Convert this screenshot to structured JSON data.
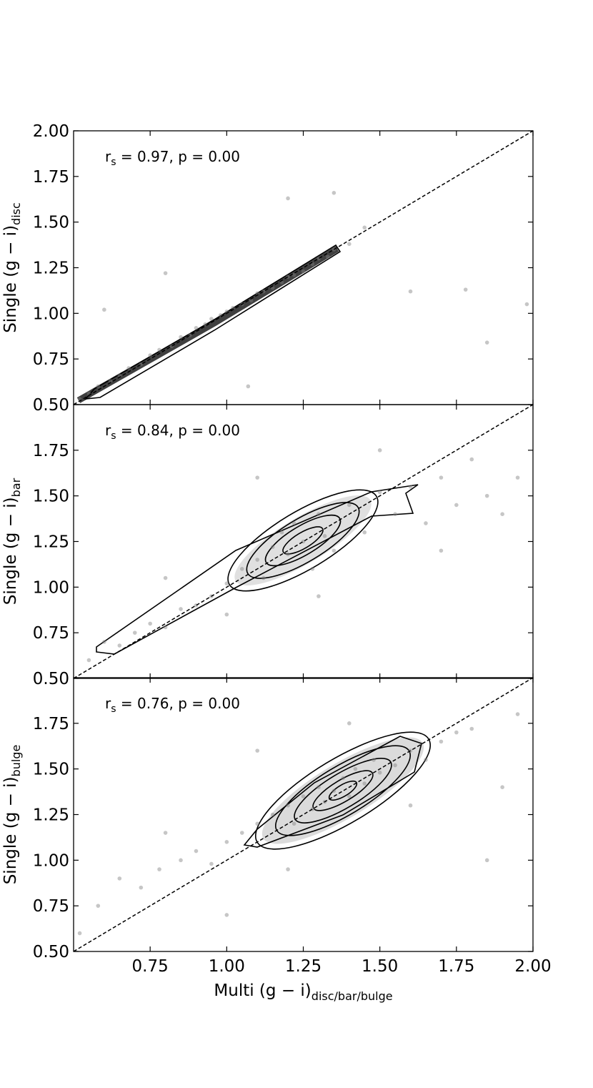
{
  "chart_data": [
    {
      "type": "scatter",
      "color": "#808080",
      "marker_alpha": 0.45,
      "diagonal": true,
      "ylabel": "Single (g − i)",
      "ylabel_sub": "disc",
      "annotation_prefix": "r",
      "annotation_sub": "s",
      "annotation": " = 0.97, p = 0.00",
      "xlim": [
        0.5,
        2.0
      ],
      "ylim": [
        0.5,
        2.0
      ],
      "xticks": [
        0.75,
        1,
        1.25,
        1.5,
        1.75,
        2
      ],
      "yticks": [
        {
          "value": 0.5,
          "label": "0.50"
        },
        {
          "value": 0.75,
          "label": "0.75"
        },
        {
          "value": 1,
          "label": "1.00"
        },
        {
          "value": 1.25,
          "label": "1.25"
        },
        {
          "value": 1.5,
          "label": "1.50"
        },
        {
          "value": 1.75,
          "label": "1.75"
        },
        {
          "value": 2,
          "label": "2.00"
        }
      ],
      "x": [
        0.52,
        0.55,
        0.58,
        0.62,
        0.65,
        0.68,
        0.72,
        0.75,
        0.78,
        0.82,
        0.85,
        0.88,
        0.9,
        0.93,
        0.95,
        0.98,
        1.0,
        1.02,
        1.05,
        1.08,
        1.1,
        1.12,
        1.15,
        1.18,
        1.2,
        1.22,
        1.25,
        1.28,
        1.3,
        1.33,
        1.35,
        1.4,
        1.45,
        1.6,
        1.78,
        1.85,
        0.6,
        0.8,
        1.2,
        1.35,
        1.98,
        1.07
      ],
      "y": [
        0.53,
        0.56,
        0.6,
        0.63,
        0.66,
        0.7,
        0.72,
        0.77,
        0.8,
        0.82,
        0.87,
        0.88,
        0.92,
        0.94,
        0.97,
        0.99,
        1.01,
        1.03,
        1.05,
        1.07,
        1.11,
        1.12,
        1.14,
        1.17,
        1.2,
        1.21,
        1.23,
        1.27,
        1.3,
        1.31,
        1.35,
        1.38,
        1.47,
        1.12,
        1.13,
        0.84,
        1.02,
        1.22,
        1.63,
        1.66,
        1.05,
        0.6
      ]
    },
    {
      "type": "scatter",
      "color": "#808080",
      "marker_alpha": 0.45,
      "diagonal": true,
      "ylabel": "Single (g − i)",
      "ylabel_sub": "bar",
      "annotation_prefix": "r",
      "annotation_sub": "s",
      "annotation": " = 0.84, p = 0.00",
      "xlim": [
        0.5,
        2.0
      ],
      "ylim": [
        0.5,
        2.0
      ],
      "xticks": [
        0.75,
        1,
        1.25,
        1.5,
        1.75,
        2
      ],
      "yticks": [
        {
          "value": 0.5,
          "label": "0.50"
        },
        {
          "value": 0.75,
          "label": "0.75"
        },
        {
          "value": 1,
          "label": "1.00"
        },
        {
          "value": 1.25,
          "label": "1.25"
        },
        {
          "value": 1.5,
          "label": "1.50"
        },
        {
          "value": 1.75,
          "label": "1.75"
        }
      ],
      "x": [
        0.55,
        0.6,
        0.65,
        0.7,
        0.75,
        0.8,
        0.85,
        0.9,
        0.95,
        1.0,
        1.05,
        1.1,
        1.12,
        1.15,
        1.18,
        1.2,
        1.22,
        1.25,
        1.28,
        1.3,
        1.32,
        1.35,
        1.4,
        1.45,
        1.5,
        1.55,
        1.6,
        1.65,
        1.7,
        1.75,
        1.8,
        1.85,
        1.9,
        1.95,
        0.8,
        1.0,
        1.3,
        1.5,
        1.7,
        1.1
      ],
      "y": [
        0.6,
        0.7,
        0.68,
        0.75,
        0.8,
        0.78,
        0.88,
        0.9,
        0.95,
        1.02,
        1.1,
        1.15,
        1.05,
        1.22,
        1.3,
        1.18,
        1.35,
        1.25,
        1.1,
        1.4,
        1.28,
        1.2,
        1.45,
        1.3,
        1.52,
        1.4,
        1.55,
        1.35,
        1.6,
        1.45,
        1.7,
        1.5,
        1.4,
        1.6,
        1.05,
        0.85,
        0.95,
        1.75,
        1.2,
        1.6
      ]
    },
    {
      "type": "scatter",
      "color": "#808080",
      "marker_alpha": 0.45,
      "diagonal": true,
      "ylabel": "Single (g − i)",
      "ylabel_sub": "bulge",
      "xlabel": "Multi (g − i)",
      "xlabel_sub": "disc/bar/bulge",
      "annotation_prefix": "r",
      "annotation_sub": "s",
      "annotation": " = 0.76, p = 0.00",
      "xlim": [
        0.5,
        2.0
      ],
      "ylim": [
        0.5,
        2.0
      ],
      "xticks": [
        {
          "value": 0.75,
          "label": "0.75"
        },
        {
          "value": 1,
          "label": "1.00"
        },
        {
          "value": 1.25,
          "label": "1.25"
        },
        {
          "value": 1.5,
          "label": "1.50"
        },
        {
          "value": 1.75,
          "label": "1.75"
        },
        {
          "value": 2,
          "label": "2.00"
        }
      ],
      "yticks": [
        {
          "value": 0.5,
          "label": "0.50"
        },
        {
          "value": 0.75,
          "label": "0.75"
        },
        {
          "value": 1,
          "label": "1.00"
        },
        {
          "value": 1.25,
          "label": "1.25"
        },
        {
          "value": 1.5,
          "label": "1.50"
        },
        {
          "value": 1.75,
          "label": "1.75"
        }
      ],
      "x": [
        0.52,
        0.58,
        0.65,
        0.72,
        0.78,
        0.85,
        0.9,
        0.95,
        1.0,
        1.05,
        1.1,
        1.15,
        1.2,
        1.22,
        1.25,
        1.28,
        1.3,
        1.32,
        1.35,
        1.38,
        1.4,
        1.42,
        1.45,
        1.48,
        1.5,
        1.55,
        1.6,
        1.65,
        1.7,
        1.75,
        1.8,
        1.9,
        1.95,
        0.8,
        1.0,
        1.2,
        1.4,
        1.6,
        1.85,
        1.1
      ],
      "y": [
        0.6,
        0.75,
        0.9,
        0.85,
        0.95,
        1.0,
        1.05,
        0.98,
        1.1,
        1.15,
        1.2,
        1.25,
        1.3,
        1.2,
        1.35,
        1.28,
        1.4,
        1.32,
        1.38,
        1.45,
        1.35,
        1.5,
        1.42,
        1.55,
        1.48,
        1.52,
        1.6,
        1.55,
        1.65,
        1.7,
        1.72,
        1.4,
        1.8,
        1.15,
        0.7,
        0.95,
        1.75,
        1.3,
        1.0,
        1.6
      ]
    }
  ]
}
